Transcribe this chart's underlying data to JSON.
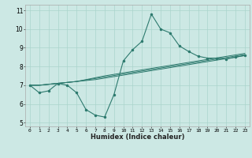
{
  "title": "",
  "xlabel": "Humidex (Indice chaleur)",
  "ylabel": "",
  "background_color": "#cce8e4",
  "grid_color": "#aad4cc",
  "line_color": "#2d7a6e",
  "xlim": [
    -0.5,
    23.5
  ],
  "ylim": [
    4.8,
    11.3
  ],
  "xticks": [
    0,
    1,
    2,
    3,
    4,
    5,
    6,
    7,
    8,
    9,
    10,
    11,
    12,
    13,
    14,
    15,
    16,
    17,
    18,
    19,
    20,
    21,
    22,
    23
  ],
  "yticks": [
    5,
    6,
    7,
    8,
    9,
    10,
    11
  ],
  "main_line": [
    7.0,
    6.6,
    6.7,
    7.1,
    7.0,
    6.6,
    5.7,
    5.4,
    5.3,
    6.5,
    8.3,
    8.9,
    9.35,
    10.8,
    10.0,
    9.8,
    9.1,
    8.8,
    8.55,
    8.45,
    8.45,
    8.4,
    8.5,
    8.6
  ],
  "reg_lines": [
    [
      7.0,
      7.0,
      7.05,
      7.1,
      7.15,
      7.2,
      7.25,
      7.3,
      7.38,
      7.46,
      7.54,
      7.62,
      7.7,
      7.78,
      7.86,
      7.94,
      8.02,
      8.1,
      8.18,
      8.26,
      8.34,
      8.42,
      8.5,
      8.58
    ],
    [
      7.0,
      7.0,
      7.05,
      7.1,
      7.15,
      7.2,
      7.28,
      7.36,
      7.44,
      7.52,
      7.6,
      7.68,
      7.76,
      7.84,
      7.92,
      8.0,
      8.08,
      8.16,
      8.24,
      8.32,
      8.4,
      8.48,
      8.56,
      8.64
    ],
    [
      7.0,
      7.0,
      7.05,
      7.1,
      7.15,
      7.2,
      7.3,
      7.4,
      7.5,
      7.58,
      7.66,
      7.74,
      7.82,
      7.9,
      7.98,
      8.06,
      8.14,
      8.22,
      8.3,
      8.38,
      8.46,
      8.54,
      8.62,
      8.7
    ]
  ]
}
